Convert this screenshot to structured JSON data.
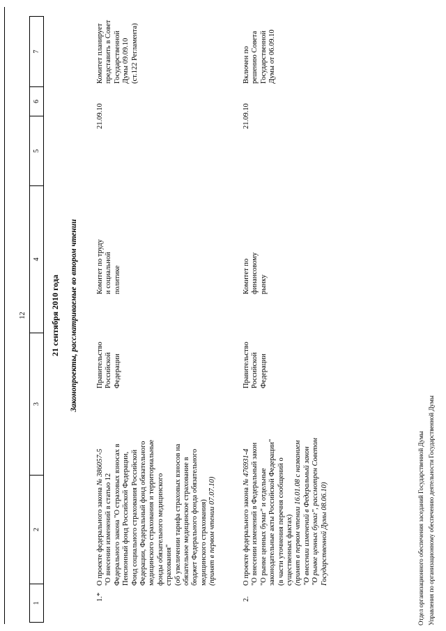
{
  "page": {
    "number": "12",
    "date_heading": "21 сентября 2010 года",
    "section_heading": "Законопроекты, рассматриваемые во втором чтении",
    "footer_lines": [
      "Отдел организационного обеспечения заседаний Государственной Думы",
      "Управления по организационному обеспечению деятельности Государственной Думы"
    ]
  },
  "table": {
    "column_numbers": [
      "1",
      "2",
      "3",
      "4",
      "5",
      "6",
      "7"
    ],
    "rows": [
      {
        "num": "1.*",
        "title_lines": [
          {
            "t": "О проекте федерального закона ",
            "t2": "№ 386057-5"
          },
          {
            "t": "\"О внесении изменений в статью 12"
          },
          {
            "t": "Федерального закона \"О страховых взносах в"
          },
          {
            "t": "Пенсионный фонд Российской Федерации,"
          },
          {
            "t": "Фонд социального страхования Российской"
          },
          {
            "t": "Федерации, Федеральный фонд обязательного"
          },
          {
            "t": "медицинского страхования и территориальные"
          },
          {
            "t": "фонды обязательного медицинского"
          },
          {
            "t": "страхования\""
          },
          {
            "t": "(об увеличении тарифа страховых взносов на"
          },
          {
            "t": "обязательное медицинское страхование в"
          },
          {
            "t": "бюджет Федерального фонда обязательного"
          },
          {
            "t": "медицинского страхования)"
          },
          {
            "t": "(принят в первом чтении 07.07.10)",
            "i": true
          }
        ],
        "initiator_lines": [
          "Правительство",
          "Российской",
          "Федерации"
        ],
        "committee_lines": [
          "Комитет по труду",
          "и социальной",
          "политике"
        ],
        "date": "21.09.10",
        "status_lines": [
          "Комитет планирует",
          "представить в Совет",
          "Государственной",
          "Думы 09.09.10",
          "(ст.122 Регламента)"
        ]
      },
      {
        "num": "2.",
        "title_lines": [
          {
            "t": "О проекте федерального закона ",
            "t2": "№ 476931-4"
          },
          {
            "t": "\"О внесении изменений в Федеральный закон"
          },
          {
            "t": "\"О рынке ценных бумаг\" и отдельные"
          },
          {
            "t": "законодательные акты Российской Федерации\""
          },
          {
            "t": "(в части уточнения перечня сообщений о"
          },
          {
            "t": "существенных фактах)"
          },
          {
            "t": "(принят в первом чтении 16.01.08 с названием",
            "i": true
          },
          {
            "t": "\"О внесении изменений в Федеральный закон",
            "i": true
          },
          {
            "t": "\"О рынке ценных бумаг\", рассмотрен Советом",
            "i": true
          },
          {
            "t": "Государственной Думы 08.06.10)",
            "i": true
          }
        ],
        "initiator_lines": [
          "Правительство",
          "Российской",
          "Федерации"
        ],
        "committee_lines": [
          "Комитет по",
          "финансовому",
          "рынку"
        ],
        "date": "21.09.10",
        "status_lines": [
          "Включен по",
          "решению Совета",
          "Государственной",
          "Думы от 06.09.10"
        ]
      }
    ]
  }
}
